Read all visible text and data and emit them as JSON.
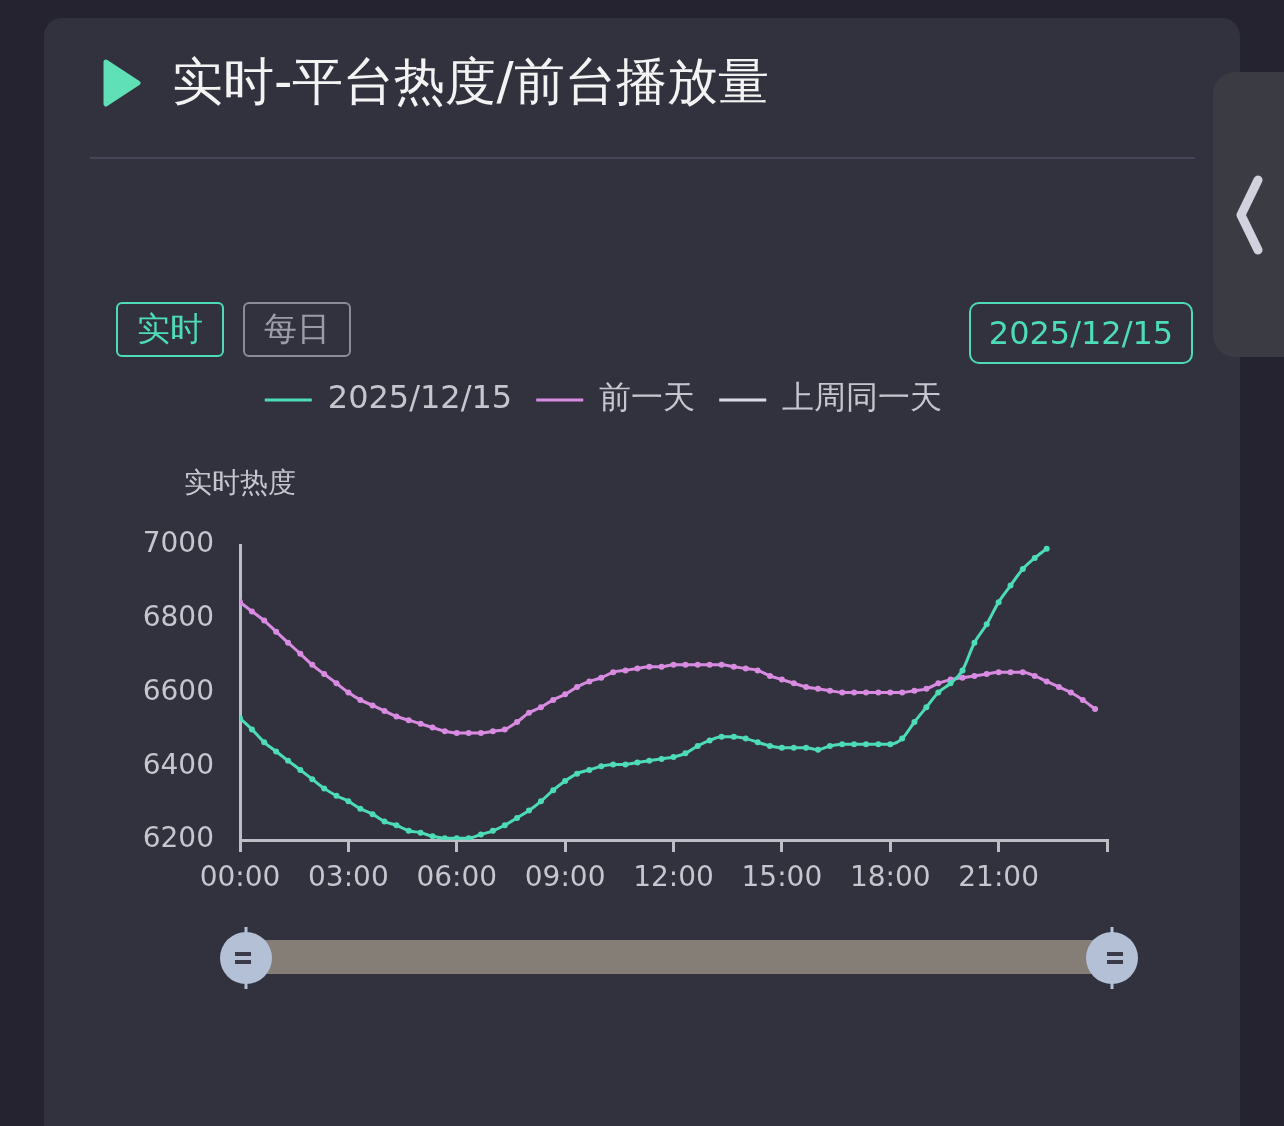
{
  "chart_data": {
    "type": "line",
    "title": "实时-平台热度/前台播放量",
    "ylabel": "实时热度",
    "annotations": [
      "实时",
      "每日",
      "2025/12/15"
    ],
    "x": [
      0,
      0.33,
      0.67,
      1,
      1.33,
      1.67,
      2,
      2.33,
      2.67,
      3,
      3.33,
      3.67,
      4,
      4.33,
      4.67,
      5,
      5.33,
      5.67,
      6,
      6.33,
      6.67,
      7,
      7.33,
      7.67,
      8,
      8.33,
      8.67,
      9,
      9.33,
      9.67,
      10,
      10.33,
      10.67,
      11,
      11.33,
      11.67,
      12,
      12.33,
      12.67,
      13,
      13.33,
      13.67,
      14,
      14.33,
      14.67,
      15,
      15.33,
      15.67,
      16,
      16.33,
      16.67,
      17,
      17.33,
      17.67,
      18,
      18.33,
      18.67,
      19,
      19.33,
      19.67,
      20,
      20.33,
      20.67,
      21,
      21.33,
      21.67,
      22,
      22.33,
      22.67,
      23,
      23.33,
      23.67
    ],
    "series": [
      {
        "name": "2025/12/15",
        "color": "#4ddcb6",
        "values": [
          6530,
          6500,
          6465,
          6440,
          6415,
          6390,
          6365,
          6340,
          6320,
          6305,
          6285,
          6270,
          6250,
          6240,
          6225,
          6220,
          6210,
          6205,
          6205,
          6205,
          6215,
          6225,
          6240,
          6260,
          6280,
          6305,
          6335,
          6360,
          6380,
          6390,
          6400,
          6405,
          6405,
          6410,
          6415,
          6420,
          6425,
          6435,
          6455,
          6470,
          6480,
          6480,
          6475,
          6465,
          6455,
          6450,
          6450,
          6450,
          6445,
          6455,
          6460,
          6460,
          6460,
          6460,
          6460,
          6475,
          6520,
          6560,
          6600,
          6625,
          6660,
          6735,
          6785,
          6845,
          6890,
          6935,
          6965,
          6990,
          null,
          null,
          null,
          null
        ]
      },
      {
        "name": "前一天",
        "color": "#d98be2",
        "values": [
          6845,
          6820,
          6795,
          6765,
          6735,
          6705,
          6675,
          6650,
          6625,
          6600,
          6580,
          6565,
          6550,
          6535,
          6525,
          6515,
          6505,
          6495,
          6490,
          6490,
          6490,
          6495,
          6500,
          6520,
          6545,
          6560,
          6580,
          6595,
          6615,
          6630,
          6640,
          6655,
          6660,
          6665,
          6670,
          6670,
          6675,
          6675,
          6675,
          6675,
          6675,
          6670,
          6665,
          6660,
          6645,
          6635,
          6625,
          6615,
          6610,
          6605,
          6600,
          6600,
          6600,
          6600,
          6600,
          6600,
          6605,
          6610,
          6625,
          6635,
          6640,
          6645,
          6650,
          6655,
          6655,
          6655,
          6645,
          6630,
          6615,
          6600,
          6580,
          6555
        ]
      },
      {
        "name": "上周同一天",
        "color": "#dcdce4",
        "values": [
          null,
          null,
          null,
          null,
          null,
          null,
          null,
          null,
          null,
          null,
          null,
          null,
          null,
          null,
          null,
          null,
          null,
          null,
          null,
          null,
          null,
          null,
          null,
          null,
          null,
          null,
          null,
          null,
          null,
          null,
          null,
          null,
          null,
          null,
          null,
          null,
          null,
          null,
          null,
          null,
          null,
          null,
          null,
          null,
          null,
          null,
          null,
          null,
          null,
          null,
          null,
          null,
          null,
          null,
          null,
          null,
          null,
          null,
          null,
          null,
          null,
          null,
          null,
          null,
          null,
          null,
          null,
          null,
          null,
          null,
          null,
          null
        ]
      }
    ],
    "xlim": [
      0,
      24
    ],
    "xticks": [
      {
        "value": 0,
        "label": "00:00"
      },
      {
        "value": 3,
        "label": "03:00"
      },
      {
        "value": 6,
        "label": "06:00"
      },
      {
        "value": 9,
        "label": "09:00"
      },
      {
        "value": 12,
        "label": "12:00"
      },
      {
        "value": 15,
        "label": "15:00"
      },
      {
        "value": 18,
        "label": "18:00"
      },
      {
        "value": 21,
        "label": "21:00"
      },
      {
        "value": 24,
        "label": null
      }
    ],
    "ylim": [
      6200,
      7000
    ],
    "yticks": [
      6200,
      6400,
      6600,
      6800,
      7000
    ],
    "grid": false,
    "legend": "top",
    "marker": "circle",
    "line_style": "solid"
  }
}
